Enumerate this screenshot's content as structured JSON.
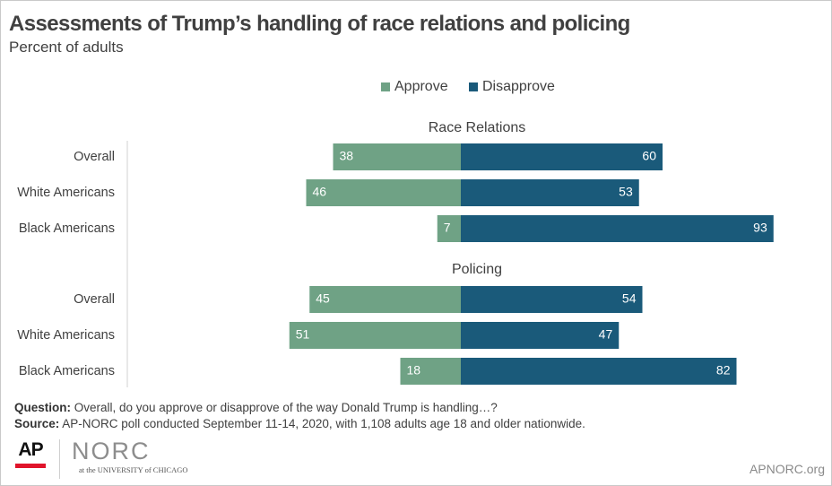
{
  "title": "Assessments of Trump’s handling of race relations and policing",
  "subtitle": "Percent of adults",
  "legend": {
    "approve": "Approve",
    "disapprove": "Disapprove"
  },
  "colors": {
    "approve": "#6fa285",
    "disapprove": "#1a5a7a"
  },
  "chart_data": {
    "type": "bar",
    "orientation": "horizontal-diverging",
    "groups": [
      {
        "name": "Race Relations",
        "categories": [
          "Overall",
          "White Americans",
          "Black Americans"
        ],
        "series": [
          {
            "name": "Approve",
            "values": [
              38,
              46,
              7
            ]
          },
          {
            "name": "Disapprove",
            "values": [
              60,
              53,
              93
            ]
          }
        ]
      },
      {
        "name": "Policing",
        "categories": [
          "Overall",
          "White Americans",
          "Black Americans"
        ],
        "series": [
          {
            "name": "Approve",
            "values": [
              45,
              51,
              18
            ]
          },
          {
            "name": "Disapprove",
            "values": [
              54,
              47,
              82
            ]
          }
        ]
      }
    ],
    "legend_position": "top-center",
    "grid": false
  },
  "footer": {
    "question_label": "Question:",
    "question_text": " Overall, do you approve or disapprove of the way Donald Trump is handling…?",
    "source_label": "Source:",
    "source_text": " AP-NORC poll conducted September 11-14, 2020, with 1,108 adults age 18 and older nationwide."
  },
  "logos": {
    "ap": "AP",
    "norc": "NORC",
    "norc_sub": "at the UNIVERSITY of CHICAGO"
  },
  "site": "APNORC.org"
}
